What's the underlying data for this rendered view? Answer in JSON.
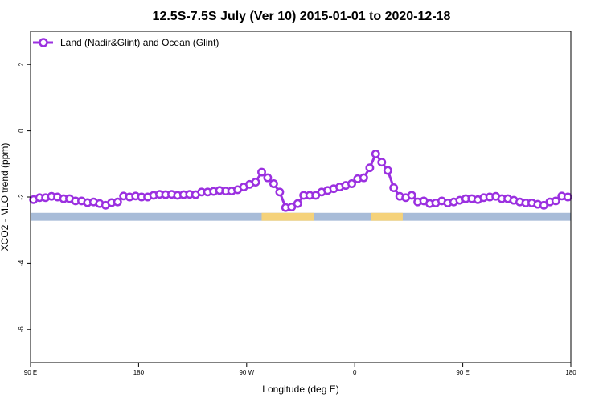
{
  "chart_data": {
    "type": "line",
    "title": "12.5S-7.5S July (Ver 10)   2015-01-01 to 2020-12-18",
    "xlabel": "Longitude (deg E)",
    "ylabel": "XCO2 - MLO trend (ppm)",
    "xlim": [
      90,
      450
    ],
    "ylim": [
      -7,
      3
    ],
    "x_ticks": [
      {
        "value": 90,
        "label": "90 E"
      },
      {
        "value": 162,
        "label": "180"
      },
      {
        "value": 234,
        "label": "90 W"
      },
      {
        "value": 306,
        "label": "0"
      },
      {
        "value": 378,
        "label": "90 E"
      },
      {
        "value": 450,
        "label": "180"
      }
    ],
    "y_ticks": [
      2,
      0,
      -2,
      -4,
      -6
    ],
    "grid": false,
    "legend": {
      "position": "top-left"
    },
    "series": [
      {
        "name": "Land (Nadir&Glint) and Ocean (Glint)",
        "color": "#9b30e0",
        "x": [
          92,
          96,
          100,
          104,
          108,
          112,
          116,
          120,
          124,
          128,
          132,
          136,
          140,
          144,
          148,
          152,
          156,
          160,
          164,
          168,
          172,
          176,
          180,
          184,
          188,
          192,
          196,
          200,
          204,
          208,
          212,
          216,
          220,
          224,
          228,
          232,
          236,
          240,
          244,
          248,
          252,
          256,
          260,
          264,
          268,
          272,
          276,
          280,
          284,
          288,
          292,
          296,
          300,
          304,
          308,
          312,
          316,
          320,
          324,
          328,
          332,
          336,
          340,
          344,
          348,
          352,
          356,
          360,
          364,
          368,
          372,
          376,
          380,
          384,
          388,
          392,
          396,
          400,
          404,
          408,
          412,
          416,
          420,
          424,
          428,
          432,
          436,
          440,
          444,
          448
        ],
        "y": [
          -2.08,
          -2.02,
          -2.02,
          -1.98,
          -2.0,
          -2.05,
          -2.05,
          -2.12,
          -2.12,
          -2.17,
          -2.15,
          -2.2,
          -2.25,
          -2.17,
          -2.15,
          -1.97,
          -2.0,
          -1.97,
          -2.0,
          -2.0,
          -1.95,
          -1.92,
          -1.93,
          -1.92,
          -1.95,
          -1.93,
          -1.92,
          -1.93,
          -1.85,
          -1.85,
          -1.83,
          -1.8,
          -1.82,
          -1.82,
          -1.78,
          -1.7,
          -1.62,
          -1.55,
          -1.25,
          -1.42,
          -1.6,
          -1.85,
          -2.32,
          -2.3,
          -2.2,
          -1.95,
          -1.95,
          -1.95,
          -1.85,
          -1.8,
          -1.75,
          -1.7,
          -1.65,
          -1.6,
          -1.45,
          -1.42,
          -1.12,
          -0.7,
          -0.95,
          -1.2,
          -1.72,
          -1.98,
          -2.02,
          -1.95,
          -2.15,
          -2.12,
          -2.2,
          -2.18,
          -2.12,
          -2.18,
          -2.15,
          -2.1,
          -2.05,
          -2.05,
          -2.08,
          -2.02,
          -2.0,
          -1.98,
          -2.05,
          -2.05,
          -2.1,
          -2.15,
          -2.18,
          -2.18,
          -2.22,
          -2.25,
          -2.15,
          -2.12,
          -1.97,
          -2.0
        ]
      }
    ],
    "land_ocean_strip": {
      "y_range": [
        -2.72,
        -2.48
      ],
      "ocean_color": "#a8bcd8",
      "land_color": "#f5d27a",
      "land_segments": [
        [
          244,
          279
        ],
        [
          317,
          338
        ]
      ]
    }
  }
}
